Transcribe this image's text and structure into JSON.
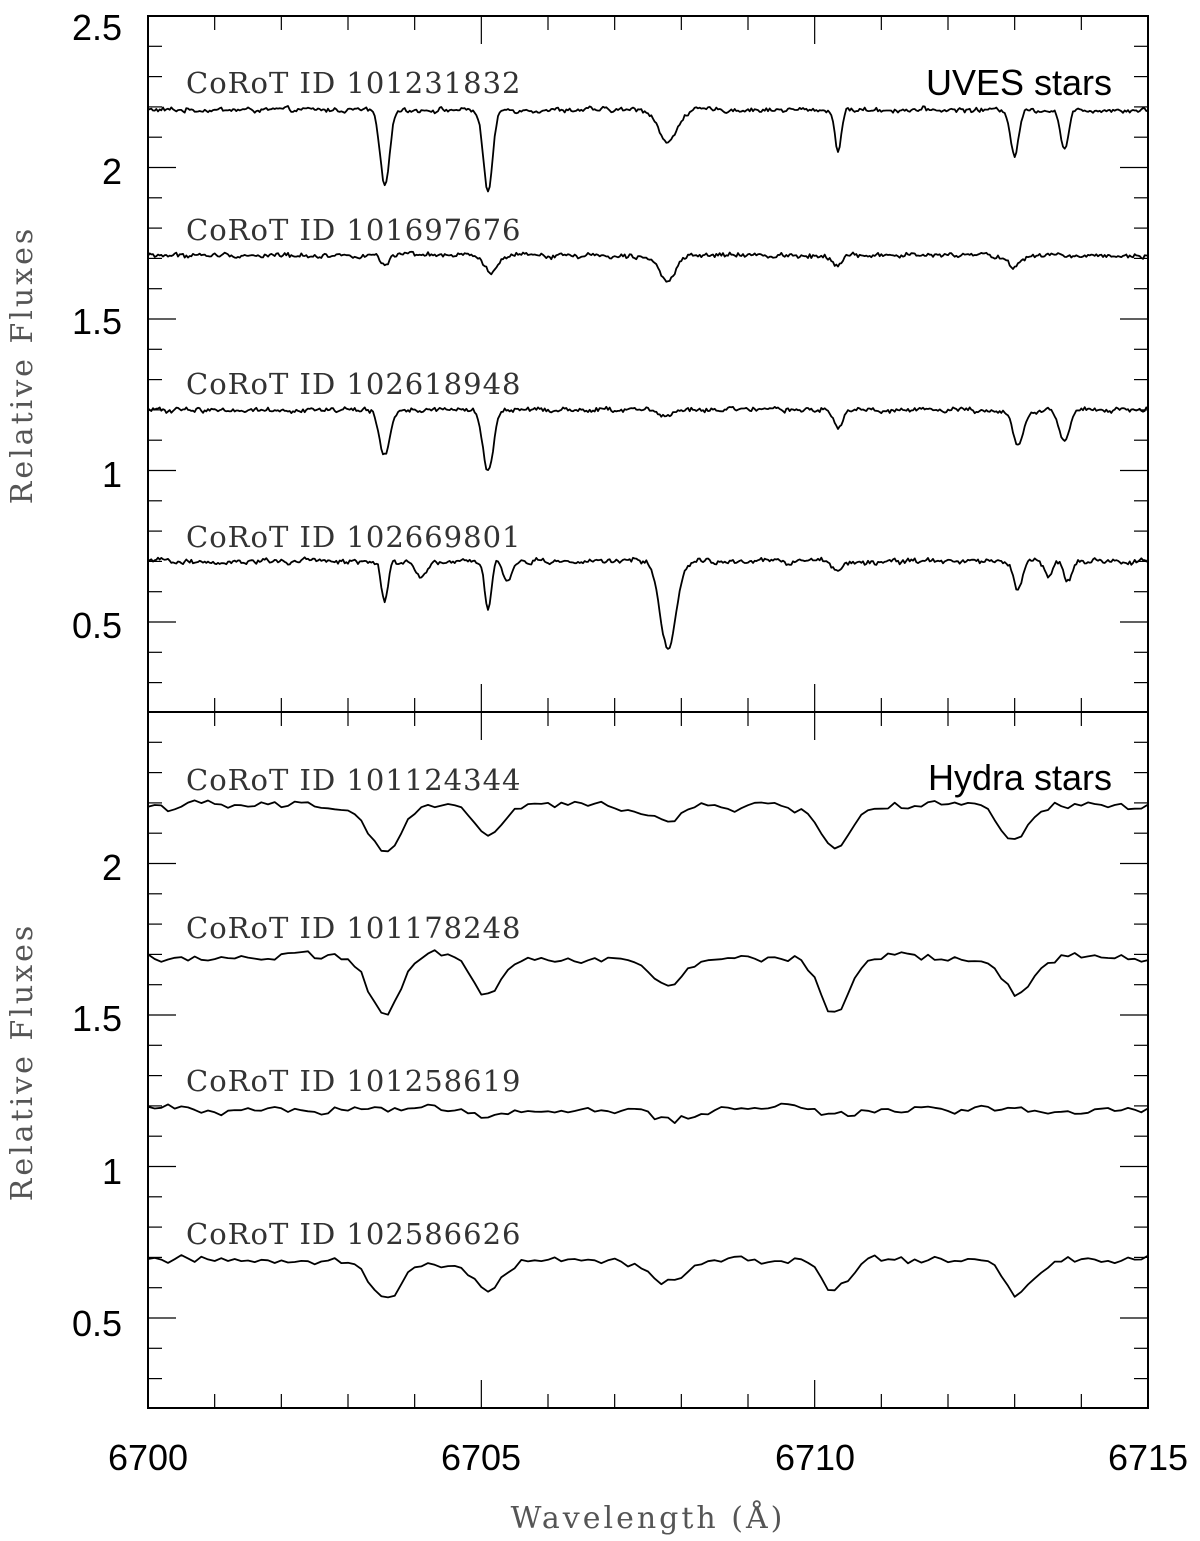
{
  "chart_data": [
    {
      "type": "line",
      "title": "UVES stars",
      "ylabel": "Relative Fluxes",
      "xlabel": "",
      "xlim": [
        6700,
        6715
      ],
      "ylim": [
        0.2,
        2.5
      ],
      "ytick_labels": [
        "0.5",
        "1",
        "1.5",
        "2",
        "2.5"
      ],
      "grid": false,
      "series": [
        {
          "name": "CoRoT ID 101231832",
          "baseline": 2.19,
          "noise": 0.008,
          "lines": [
            [
              6703.55,
              0.25,
              0.07
            ],
            [
              6705.1,
              0.27,
              0.07
            ],
            [
              6707.8,
              0.11,
              0.13
            ],
            [
              6710.35,
              0.13,
              0.05
            ],
            [
              6713.0,
              0.15,
              0.06
            ],
            [
              6713.75,
              0.13,
              0.06
            ]
          ]
        },
        {
          "name": "CoRoT ID 101697676",
          "baseline": 1.71,
          "noise": 0.008,
          "lines": [
            [
              6703.55,
              0.03,
              0.07
            ],
            [
              6705.15,
              0.06,
              0.1
            ],
            [
              6707.8,
              0.08,
              0.13
            ],
            [
              6710.35,
              0.03,
              0.07
            ],
            [
              6713.0,
              0.04,
              0.1
            ]
          ]
        },
        {
          "name": "CoRoT ID 102618948",
          "baseline": 1.2,
          "noise": 0.008,
          "lines": [
            [
              6703.55,
              0.15,
              0.08
            ],
            [
              6705.1,
              0.2,
              0.08
            ],
            [
              6707.8,
              0.02,
              0.1
            ],
            [
              6710.35,
              0.06,
              0.07
            ],
            [
              6713.05,
              0.12,
              0.08
            ],
            [
              6713.75,
              0.1,
              0.08
            ]
          ]
        },
        {
          "name": "CoRoT ID 102669801",
          "baseline": 0.7,
          "noise": 0.009,
          "lines": [
            [
              6703.55,
              0.13,
              0.05
            ],
            [
              6704.1,
              0.05,
              0.08
            ],
            [
              6705.1,
              0.16,
              0.05
            ],
            [
              6705.4,
              0.07,
              0.06
            ],
            [
              6707.8,
              0.29,
              0.12
            ],
            [
              6710.35,
              0.03,
              0.07
            ],
            [
              6713.05,
              0.1,
              0.06
            ],
            [
              6713.5,
              0.05,
              0.06
            ],
            [
              6713.8,
              0.07,
              0.06
            ]
          ]
        }
      ]
    },
    {
      "type": "line",
      "title": "Hydra stars",
      "ylabel": "Relative Fluxes",
      "xlabel": "Wavelength (Å)",
      "xlim": [
        6700,
        6715
      ],
      "ylim": [
        0.2,
        2.5
      ],
      "xtick_labels": [
        "6700",
        "6705",
        "6710",
        "6715"
      ],
      "ytick_labels": [
        "0.5",
        "1",
        "1.5",
        "2"
      ],
      "grid": false,
      "series": [
        {
          "name": "CoRoT ID 101124344",
          "baseline": 2.19,
          "noise": 0.015,
          "lines": [
            [
              6703.55,
              0.16,
              0.22
            ],
            [
              6705.1,
              0.1,
              0.2
            ],
            [
              6707.8,
              0.05,
              0.25
            ],
            [
              6710.3,
              0.14,
              0.22
            ],
            [
              6713.0,
              0.12,
              0.22
            ]
          ]
        },
        {
          "name": "CoRoT ID 101178248",
          "baseline": 1.69,
          "noise": 0.015,
          "lines": [
            [
              6703.55,
              0.19,
              0.22
            ],
            [
              6705.1,
              0.13,
              0.2
            ],
            [
              6707.8,
              0.1,
              0.25
            ],
            [
              6710.3,
              0.19,
              0.22
            ],
            [
              6713.05,
              0.13,
              0.22
            ]
          ]
        },
        {
          "name": "CoRoT ID 101258619",
          "baseline": 1.19,
          "noise": 0.014,
          "lines": [
            [
              6705.1,
              0.02,
              0.2
            ],
            [
              6707.8,
              0.04,
              0.25
            ],
            [
              6710.3,
              0.02,
              0.22
            ]
          ]
        },
        {
          "name": "CoRoT ID 102586626",
          "baseline": 0.69,
          "noise": 0.015,
          "lines": [
            [
              6703.55,
              0.12,
              0.22
            ],
            [
              6705.1,
              0.1,
              0.2
            ],
            [
              6707.8,
              0.08,
              0.25
            ],
            [
              6710.3,
              0.1,
              0.22
            ],
            [
              6713.05,
              0.12,
              0.22
            ]
          ]
        }
      ]
    }
  ]
}
